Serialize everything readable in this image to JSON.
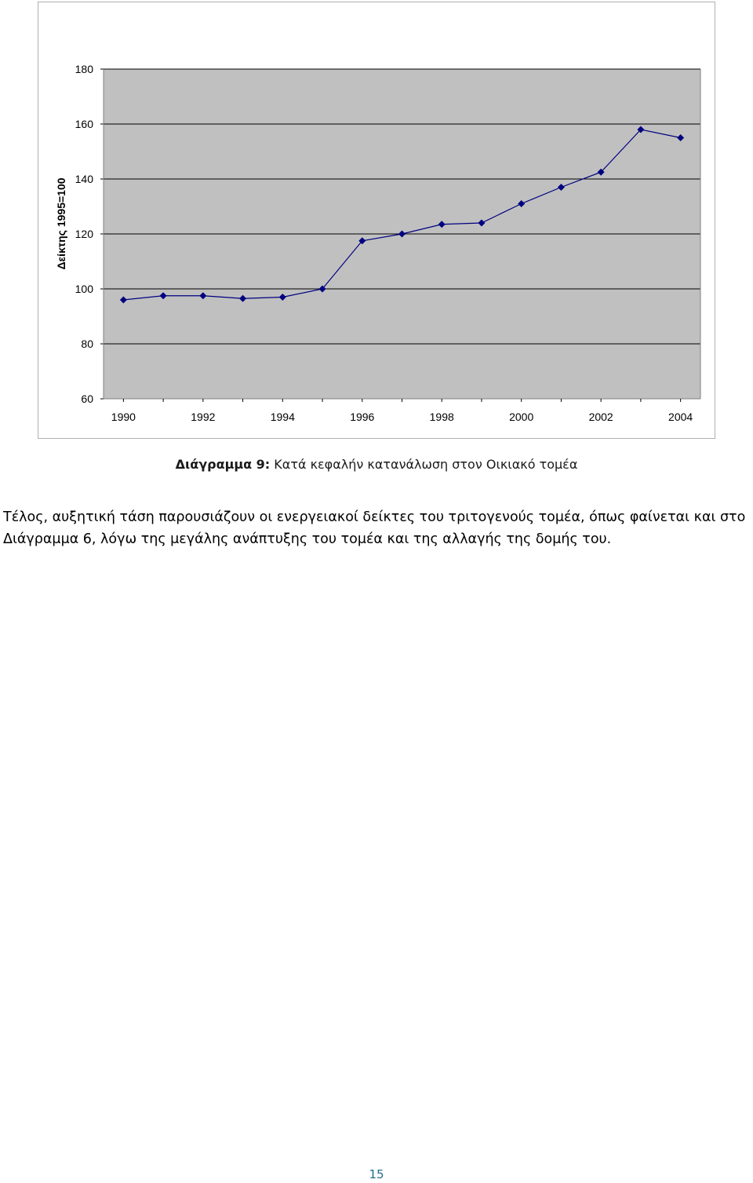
{
  "chart_data": {
    "type": "line",
    "ylabel": "Δείκτης 1995=100",
    "xlabel": "",
    "x": [
      1990,
      1991,
      1992,
      1993,
      1994,
      1995,
      1996,
      1997,
      1998,
      1999,
      2000,
      2001,
      2002,
      2003,
      2004
    ],
    "x_tick_labels": [
      "1990",
      "1992",
      "1994",
      "1996",
      "1998",
      "2000",
      "2002",
      "2004"
    ],
    "x_ticks": [
      1990,
      1992,
      1994,
      1996,
      1998,
      2000,
      2002,
      2004
    ],
    "xlim": [
      1989.5,
      2004.5
    ],
    "ylim": [
      60,
      180
    ],
    "y_ticks": [
      60,
      80,
      100,
      120,
      140,
      160,
      180
    ],
    "grid": "horizontal",
    "legend": "none",
    "series": [
      {
        "values": [
          96,
          97.5,
          97.5,
          96.5,
          97,
          100,
          117.5,
          120,
          123.5,
          124,
          131,
          137,
          142.5,
          158,
          155
        ]
      }
    ],
    "colors": {
      "plot_background": "#c0c0c0",
      "line": "#000080",
      "gridline": "#000000"
    }
  },
  "caption": {
    "label": "Διάγραμμα 9:",
    "text": " Κατά κεφαλήν κατανάλωση στον Οικιακό τομέα"
  },
  "body": {
    "line1": "Τέλος, αυξητική τάση παρουσιάζουν οι ενεργειακοί δείκτες του τριτογενούς τομέα, όπως φαίνεται και στο",
    "line2": "Διάγραμμα 6, λόγω της μεγάλης ανάπτυξης του τομέα και της αλλαγής της δομής του."
  },
  "page_number": "15"
}
